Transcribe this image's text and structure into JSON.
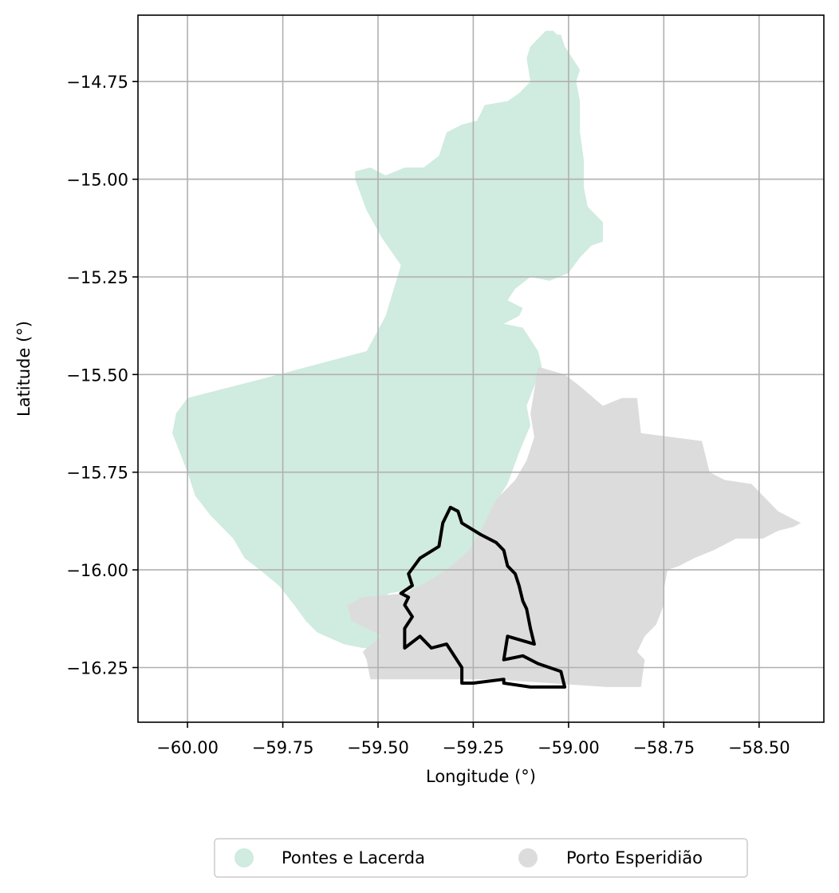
{
  "chart_data": {
    "type": "map",
    "xlabel": "Longitude (°)",
    "ylabel": "Latitude (°)",
    "xlim": [
      -60.13,
      -58.33
    ],
    "ylim": [
      -16.39,
      -14.58
    ],
    "grid": true,
    "x_ticks": [
      -60.0,
      -59.75,
      -59.5,
      -59.25,
      -59.0,
      -58.75,
      -58.5
    ],
    "x_tick_labels": [
      "−60.00",
      "−59.75",
      "−59.50",
      "−59.25",
      "−59.00",
      "−58.75",
      "−58.50"
    ],
    "y_ticks": [
      -14.75,
      -15.0,
      -15.25,
      -15.5,
      -15.75,
      -16.0,
      -16.25
    ],
    "y_tick_labels": [
      "−14.75",
      "−15.00",
      "−15.25",
      "−15.50",
      "−15.75",
      "−16.00",
      "−16.25"
    ],
    "legend_position": "bottom-center",
    "regions": [
      {
        "name": "Pontes e Lacerda",
        "color": "#d0ebdf",
        "polygon": [
          [
            -59.1,
            -14.66
          ],
          [
            -59.08,
            -14.64
          ],
          [
            -59.06,
            -14.62
          ],
          [
            -59.04,
            -14.62
          ],
          [
            -59.03,
            -14.63
          ],
          [
            -59.02,
            -14.63
          ],
          [
            -59.01,
            -14.66
          ],
          [
            -58.99,
            -14.69
          ],
          [
            -58.97,
            -14.72
          ],
          [
            -58.98,
            -14.75
          ],
          [
            -58.97,
            -14.8
          ],
          [
            -58.97,
            -14.88
          ],
          [
            -58.96,
            -14.95
          ],
          [
            -58.96,
            -15.02
          ],
          [
            -58.95,
            -15.07
          ],
          [
            -58.93,
            -15.09
          ],
          [
            -58.91,
            -15.11
          ],
          [
            -58.91,
            -15.16
          ],
          [
            -58.94,
            -15.17
          ],
          [
            -58.97,
            -15.2
          ],
          [
            -59.0,
            -15.24
          ],
          [
            -59.05,
            -15.26
          ],
          [
            -59.1,
            -15.25
          ],
          [
            -59.14,
            -15.28
          ],
          [
            -59.16,
            -15.31
          ],
          [
            -59.12,
            -15.33
          ],
          [
            -59.13,
            -15.35
          ],
          [
            -59.17,
            -15.37
          ],
          [
            -59.12,
            -15.38
          ],
          [
            -59.1,
            -15.41
          ],
          [
            -59.08,
            -15.44
          ],
          [
            -59.07,
            -15.48
          ],
          [
            -59.09,
            -15.53
          ],
          [
            -59.11,
            -15.58
          ],
          [
            -59.1,
            -15.63
          ],
          [
            -59.13,
            -15.7
          ],
          [
            -59.16,
            -15.78
          ],
          [
            -59.2,
            -15.84
          ],
          [
            -59.22,
            -15.91
          ],
          [
            -59.26,
            -15.97
          ],
          [
            -59.29,
            -16.01
          ],
          [
            -59.34,
            -16.04
          ],
          [
            -59.41,
            -16.05
          ],
          [
            -59.47,
            -16.06
          ],
          [
            -59.52,
            -16.09
          ],
          [
            -59.53,
            -16.15
          ],
          [
            -59.49,
            -16.17
          ],
          [
            -59.5,
            -16.2
          ],
          [
            -59.54,
            -16.2
          ],
          [
            -59.59,
            -16.19
          ],
          [
            -59.66,
            -16.16
          ],
          [
            -59.69,
            -16.13
          ],
          [
            -59.72,
            -16.09
          ],
          [
            -59.76,
            -16.04
          ],
          [
            -59.81,
            -16.0
          ],
          [
            -59.85,
            -15.97
          ],
          [
            -59.88,
            -15.92
          ],
          [
            -59.94,
            -15.86
          ],
          [
            -59.98,
            -15.81
          ],
          [
            -60.0,
            -15.75
          ],
          [
            -60.02,
            -15.7
          ],
          [
            -60.04,
            -15.65
          ],
          [
            -60.03,
            -15.6
          ],
          [
            -60.0,
            -15.56
          ],
          [
            -59.8,
            -15.51
          ],
          [
            -59.53,
            -15.44
          ],
          [
            -59.48,
            -15.35
          ],
          [
            -59.44,
            -15.22
          ],
          [
            -59.49,
            -15.15
          ],
          [
            -59.53,
            -15.08
          ],
          [
            -59.56,
            -15.0
          ],
          [
            -59.56,
            -14.98
          ],
          [
            -59.52,
            -14.97
          ],
          [
            -59.48,
            -14.99
          ],
          [
            -59.43,
            -14.97
          ],
          [
            -59.38,
            -14.97
          ],
          [
            -59.34,
            -14.94
          ],
          [
            -59.32,
            -14.88
          ],
          [
            -59.28,
            -14.86
          ],
          [
            -59.24,
            -14.85
          ],
          [
            -59.22,
            -14.81
          ],
          [
            -59.16,
            -14.8
          ],
          [
            -59.13,
            -14.78
          ],
          [
            -59.1,
            -14.75
          ],
          [
            -59.11,
            -14.69
          ]
        ]
      },
      {
        "name": "Porto Esperidião",
        "color": "#dcdcdc",
        "polygon": [
          [
            -59.08,
            -15.48
          ],
          [
            -59.01,
            -15.5
          ],
          [
            -58.97,
            -15.53
          ],
          [
            -58.91,
            -15.58
          ],
          [
            -58.86,
            -15.56
          ],
          [
            -58.82,
            -15.56
          ],
          [
            -58.81,
            -15.65
          ],
          [
            -58.65,
            -15.67
          ],
          [
            -58.64,
            -15.71
          ],
          [
            -58.63,
            -15.75
          ],
          [
            -58.59,
            -15.77
          ],
          [
            -58.52,
            -15.78
          ],
          [
            -58.45,
            -15.85
          ],
          [
            -58.39,
            -15.88
          ],
          [
            -58.41,
            -15.89
          ],
          [
            -58.45,
            -15.9
          ],
          [
            -58.49,
            -15.92
          ],
          [
            -58.56,
            -15.92
          ],
          [
            -58.62,
            -15.95
          ],
          [
            -58.67,
            -15.97
          ],
          [
            -58.71,
            -15.99
          ],
          [
            -58.74,
            -16.0
          ],
          [
            -58.75,
            -16.05
          ],
          [
            -58.75,
            -16.09
          ],
          [
            -58.77,
            -16.14
          ],
          [
            -58.8,
            -16.17
          ],
          [
            -58.82,
            -16.21
          ],
          [
            -58.8,
            -16.23
          ],
          [
            -58.81,
            -16.3
          ],
          [
            -58.9,
            -16.3
          ],
          [
            -59.05,
            -16.29
          ],
          [
            -59.2,
            -16.28
          ],
          [
            -59.35,
            -16.28
          ],
          [
            -59.52,
            -16.28
          ],
          [
            -59.53,
            -16.23
          ],
          [
            -59.54,
            -16.21
          ],
          [
            -59.53,
            -16.2
          ],
          [
            -59.49,
            -16.17
          ],
          [
            -59.53,
            -16.15
          ],
          [
            -59.57,
            -16.13
          ],
          [
            -59.58,
            -16.09
          ],
          [
            -59.54,
            -16.07
          ],
          [
            -59.43,
            -16.06
          ],
          [
            -59.37,
            -16.03
          ],
          [
            -59.32,
            -16.0
          ],
          [
            -59.26,
            -15.95
          ],
          [
            -59.23,
            -15.9
          ],
          [
            -59.19,
            -15.82
          ],
          [
            -59.14,
            -15.77
          ],
          [
            -59.11,
            -15.72
          ],
          [
            -59.09,
            -15.66
          ],
          [
            -59.1,
            -15.6
          ],
          [
            -59.09,
            -15.54
          ]
        ]
      }
    ],
    "outline": {
      "color": "#000000",
      "polygon": [
        [
          -59.31,
          -15.84
        ],
        [
          -59.29,
          -15.85
        ],
        [
          -59.28,
          -15.88
        ],
        [
          -59.23,
          -15.91
        ],
        [
          -59.19,
          -15.93
        ],
        [
          -59.17,
          -15.95
        ],
        [
          -59.16,
          -15.99
        ],
        [
          -59.14,
          -16.01
        ],
        [
          -59.13,
          -16.04
        ],
        [
          -59.12,
          -16.08
        ],
        [
          -59.11,
          -16.1
        ],
        [
          -59.1,
          -16.15
        ],
        [
          -59.09,
          -16.19
        ],
        [
          -59.16,
          -16.17
        ],
        [
          -59.17,
          -16.23
        ],
        [
          -59.12,
          -16.22
        ],
        [
          -59.08,
          -16.24
        ],
        [
          -59.05,
          -16.25
        ],
        [
          -59.02,
          -16.26
        ],
        [
          -59.01,
          -16.3
        ],
        [
          -59.1,
          -16.3
        ],
        [
          -59.17,
          -16.29
        ],
        [
          -59.17,
          -16.28
        ],
        [
          -59.25,
          -16.29
        ],
        [
          -59.28,
          -16.29
        ],
        [
          -59.28,
          -16.25
        ],
        [
          -59.32,
          -16.19
        ],
        [
          -59.36,
          -16.2
        ],
        [
          -59.39,
          -16.17
        ],
        [
          -59.43,
          -16.2
        ],
        [
          -59.43,
          -16.15
        ],
        [
          -59.41,
          -16.12
        ],
        [
          -59.43,
          -16.09
        ],
        [
          -59.42,
          -16.07
        ],
        [
          -59.44,
          -16.06
        ],
        [
          -59.41,
          -16.04
        ],
        [
          -59.42,
          -16.01
        ],
        [
          -59.39,
          -15.97
        ],
        [
          -59.34,
          -15.94
        ],
        [
          -59.33,
          -15.88
        ]
      ]
    }
  },
  "legend": {
    "items": [
      {
        "label": "Pontes e Lacerda",
        "color": "#d0ebdf"
      },
      {
        "label": "Porto Esperidião",
        "color": "#dcdcdc"
      }
    ]
  }
}
